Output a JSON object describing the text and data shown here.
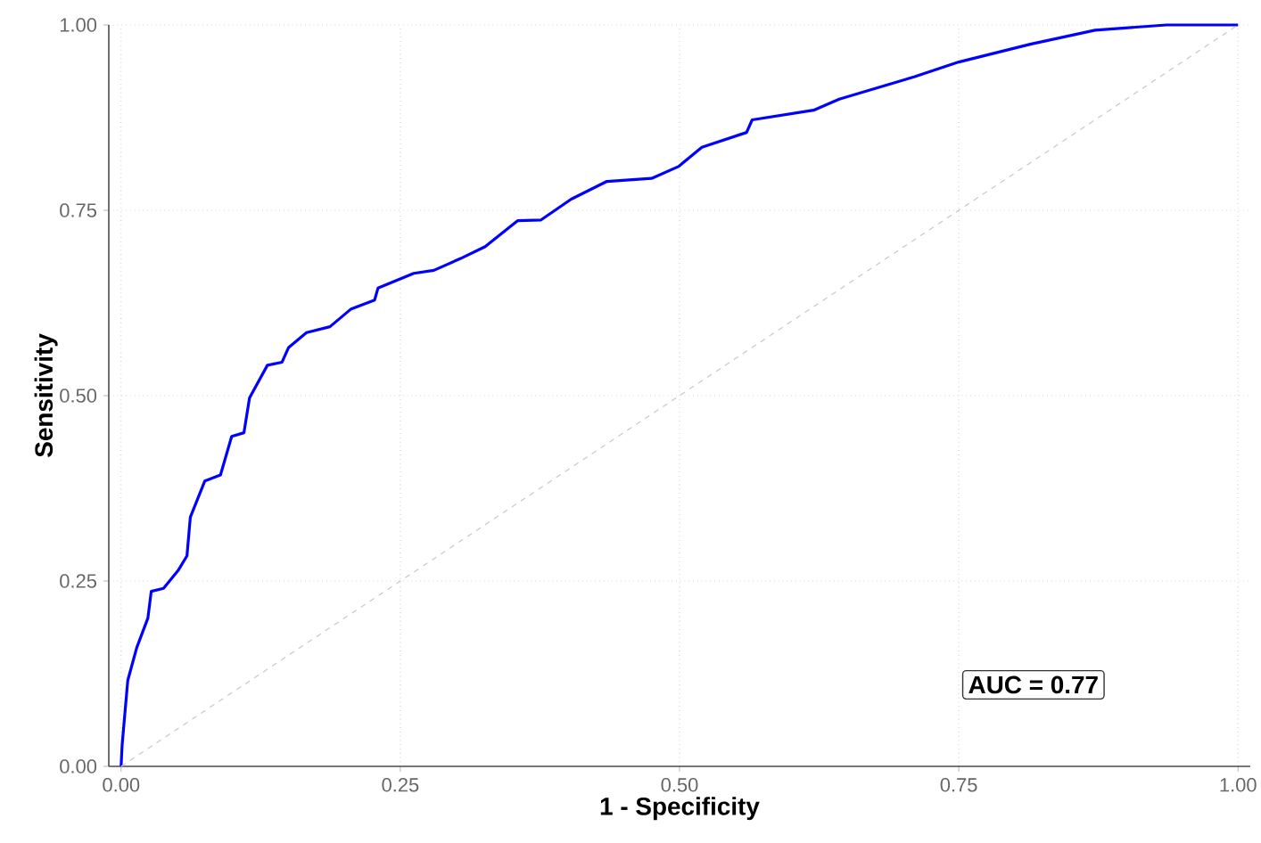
{
  "chart_data": {
    "type": "line",
    "xlabel": "1 - Specificity",
    "ylabel": "Sensitivity",
    "x": [
      0,
      0.001,
      0.006,
      0.014,
      0.024,
      0.027,
      0.038,
      0.051,
      0.059,
      0.062,
      0.075,
      0.089,
      0.099,
      0.11,
      0.115,
      0.131,
      0.144,
      0.15,
      0.166,
      0.187,
      0.206,
      0.227,
      0.23,
      0.262,
      0.28,
      0.304,
      0.326,
      0.355,
      0.376,
      0.403,
      0.435,
      0.475,
      0.499,
      0.52,
      0.56,
      0.565,
      0.62,
      0.643,
      0.71,
      0.75,
      0.814,
      0.872,
      0.936,
      1.0
    ],
    "series": [
      {
        "color": "#0000ff",
        "values": [
          0,
          0.03,
          0.116,
          0.16,
          0.2,
          0.236,
          0.24,
          0.264,
          0.284,
          0.336,
          0.385,
          0.393,
          0.445,
          0.45,
          0.497,
          0.541,
          0.545,
          0.565,
          0.585,
          0.593,
          0.617,
          0.629,
          0.645,
          0.665,
          0.669,
          0.685,
          0.701,
          0.736,
          0.737,
          0.765,
          0.789,
          0.793,
          0.809,
          0.835,
          0.855,
          0.872,
          0.885,
          0.9,
          0.93,
          0.95,
          0.974,
          0.993,
          1.0,
          1.0
        ]
      },
      {
        "color": "#c8c8c8",
        "line_style": "dashed",
        "x": [
          0,
          1
        ],
        "values": [
          0,
          1
        ]
      }
    ],
    "xlim": [
      -0.011,
      1.011
    ],
    "ylim": [
      0,
      1
    ],
    "xticks": [
      {
        "value": 0,
        "label": "0.00"
      },
      {
        "value": 0.25,
        "label": "0.25"
      },
      {
        "value": 0.5,
        "label": "0.50"
      },
      {
        "value": 0.75,
        "label": "0.75"
      },
      {
        "value": 1,
        "label": "1.00"
      }
    ],
    "yticks": [
      {
        "value": 0,
        "label": "0.00"
      },
      {
        "value": 0.25,
        "label": "0.25"
      },
      {
        "value": 0.5,
        "label": "0.50"
      },
      {
        "value": 0.75,
        "label": "0.75"
      },
      {
        "value": 1,
        "label": "1.00"
      }
    ],
    "grid": true,
    "annotations": [
      "AUC = 0.77"
    ]
  }
}
